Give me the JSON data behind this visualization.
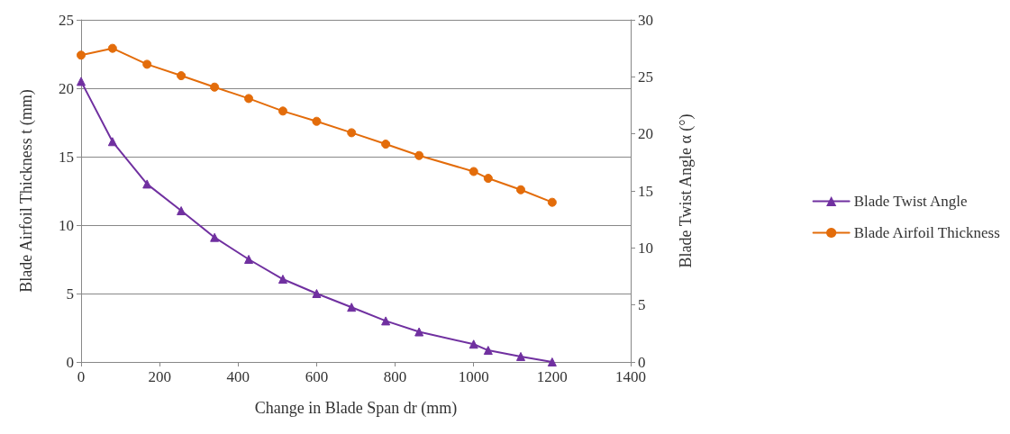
{
  "chart_data": {
    "type": "line",
    "xlabel": "Change in Blade Span dr (mm)",
    "ylabel": "Blade Airfoil Thickness t (mm)",
    "y2label": "Blade Twist Angle α (°)",
    "x": [
      0,
      80,
      168,
      255,
      340,
      427,
      514,
      600,
      689,
      776,
      861,
      1000,
      1037,
      1120,
      1200
    ],
    "series": [
      {
        "name": "Blade Twist Angle",
        "color": "#7030a0",
        "marker": "triangle",
        "values": [
          20.5,
          16.1,
          13.0,
          11.05,
          9.1,
          7.5,
          6.05,
          5.0,
          4.0,
          3.0,
          2.2,
          1.3,
          0.85,
          0.4,
          0
        ]
      },
      {
        "name": "Blade Airfoil Thickness",
        "color": "#e36c0a",
        "marker": "circle",
        "axis": "y2",
        "values": [
          26.9,
          27.5,
          26.1,
          25.1,
          24.1,
          23.1,
          22.0,
          21.1,
          20.1,
          19.1,
          18.1,
          16.7,
          16.1,
          15.1,
          14.0
        ]
      }
    ],
    "xlim": [
      0,
      1400
    ],
    "xticks": [
      0,
      200,
      400,
      600,
      800,
      1000,
      1200,
      1400
    ],
    "ylim": [
      0,
      25
    ],
    "yticks": [
      0,
      5,
      10,
      15,
      20,
      25
    ],
    "y2lim": [
      0,
      30
    ],
    "y2ticks": [
      0,
      5,
      10,
      15,
      20,
      25,
      30
    ],
    "grid": "y",
    "legend": "right",
    "line_style": "solid"
  }
}
